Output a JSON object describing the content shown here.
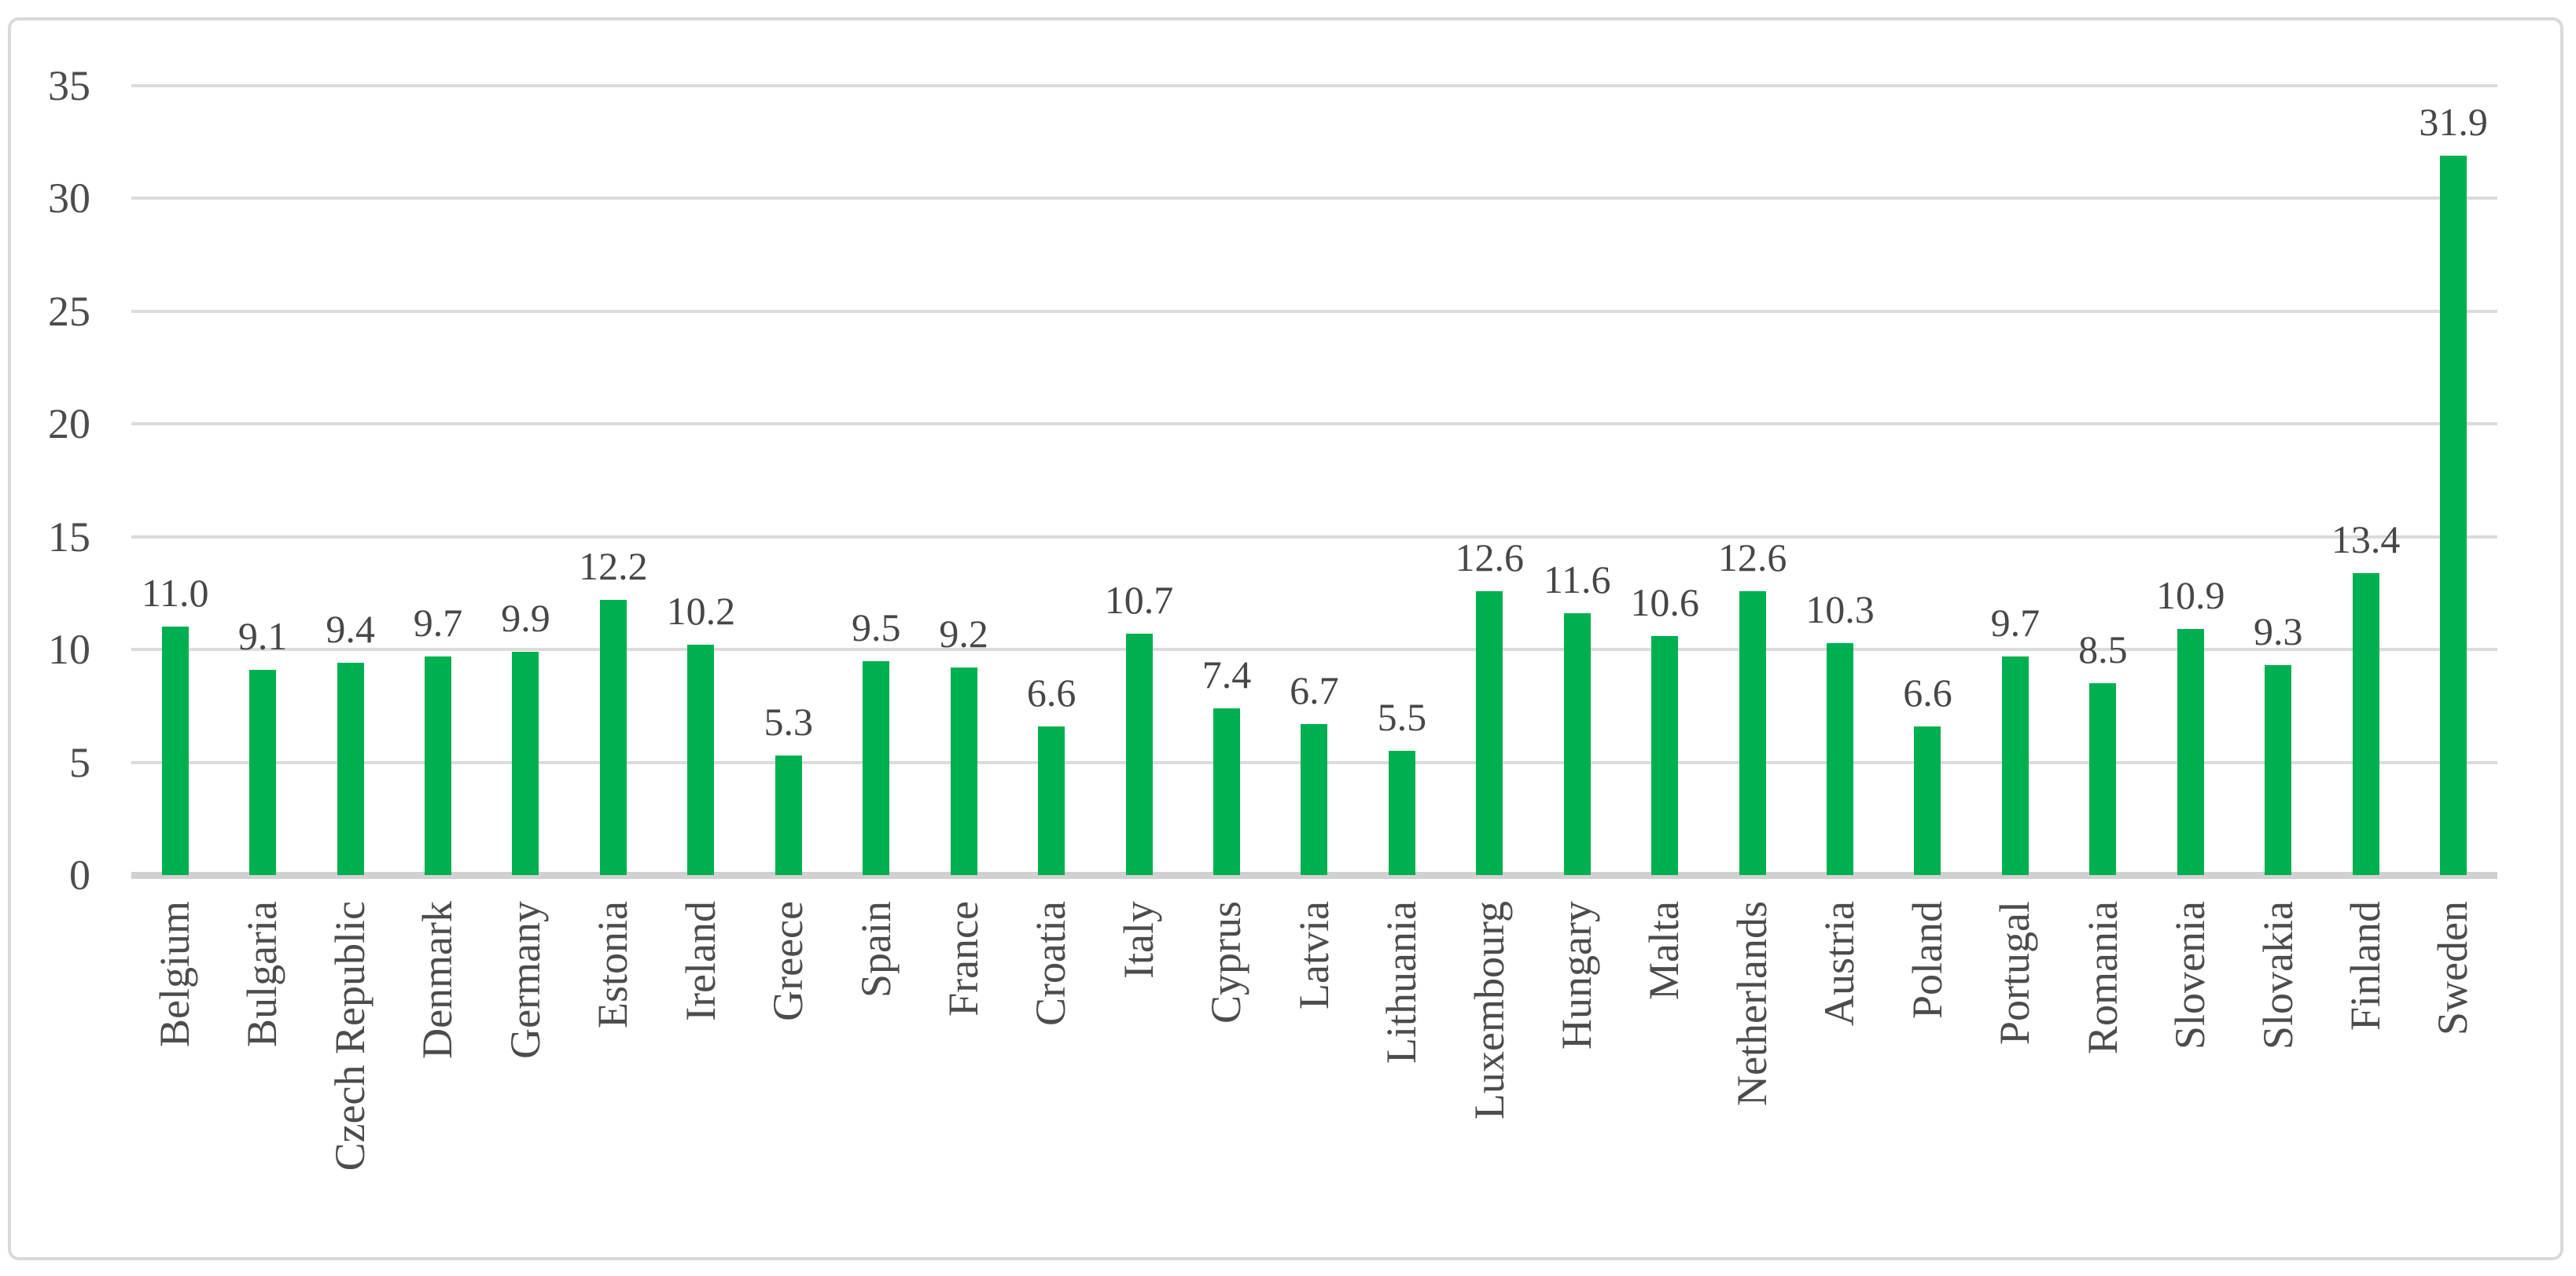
{
  "chart_data": {
    "type": "bar",
    "title": "",
    "xlabel": "",
    "ylabel": "",
    "categories": [
      "Belgium",
      "Bulgaria",
      "Czech Republic",
      "Denmark",
      "Germany",
      "Estonia",
      "Ireland",
      "Greece",
      "Spain",
      "France",
      "Croatia",
      "Italy",
      "Cyprus",
      "Latvia",
      "Lithuania",
      "Luxembourg",
      "Hungary",
      "Malta",
      "Netherlands",
      "Austria",
      "Poland",
      "Portugal",
      "Romania",
      "Slovenia",
      "Slovakia",
      "Finland",
      "Sweden"
    ],
    "values": [
      11.0,
      9.1,
      9.4,
      9.7,
      9.9,
      12.2,
      10.2,
      5.3,
      9.5,
      9.2,
      6.6,
      10.7,
      7.4,
      6.7,
      5.5,
      12.6,
      11.6,
      10.6,
      12.6,
      10.3,
      6.6,
      9.7,
      8.5,
      10.9,
      9.3,
      13.4,
      31.9
    ],
    "data_labels": [
      "11.0",
      "9.1",
      "9.4",
      "9.7",
      "9.9",
      "12.2",
      "10.2",
      "5.3",
      "9.5",
      "9.2",
      "6.6",
      "10.7",
      "7.4",
      "6.7",
      "5.5",
      "12.6",
      "11.6",
      "10.6",
      "12.6",
      "10.3",
      "6.6",
      "9.7",
      "8.5",
      "10.9",
      "9.3",
      "13.4",
      "31.9"
    ],
    "yticks": [
      0,
      5,
      10,
      15,
      20,
      25,
      30,
      35
    ],
    "ylim": [
      0,
      35
    ],
    "grid": true,
    "legend": false,
    "bar_color": "#00B050",
    "label_color": "#474747",
    "tick_label_color": "#4C4C4C",
    "gridline_color": "#DBDBDB",
    "axis_line_color": "#D1D1D1",
    "frame_border_color": "#D9D9D9",
    "background": "#FFFFFF"
  }
}
